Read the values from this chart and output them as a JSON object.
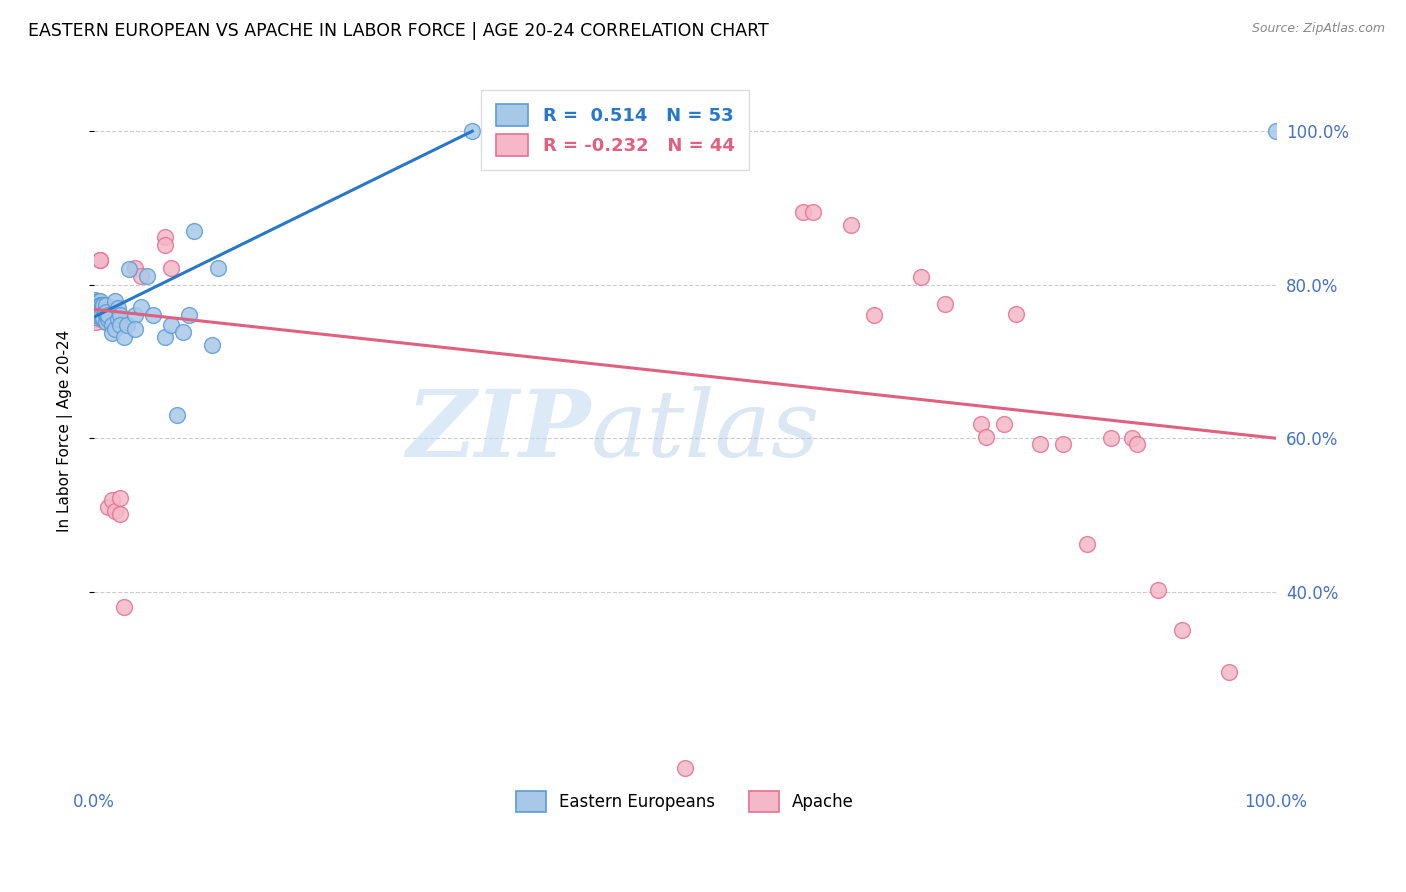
{
  "title": "EASTERN EUROPEAN VS APACHE IN LABOR FORCE | AGE 20-24 CORRELATION CHART",
  "source": "Source: ZipAtlas.com",
  "ylabel": "In Labor Force | Age 20-24",
  "watermark_zip": "ZIP",
  "watermark_atlas": "atlas",
  "blue_color": "#a8c8e8",
  "blue_edge_color": "#5b9bd5",
  "pink_color": "#f4b8c8",
  "pink_edge_color": "#e87090",
  "blue_line_color": "#2878c8",
  "pink_line_color": "#e06080",
  "axis_label_color": "#4472c4",
  "blue_scatter": [
    [
      0.001,
      0.775
    ],
    [
      0.001,
      0.762
    ],
    [
      0.001,
      0.77
    ],
    [
      0.001,
      0.758
    ],
    [
      0.001,
      0.78
    ],
    [
      0.001,
      0.767
    ],
    [
      0.002,
      0.774
    ],
    [
      0.002,
      0.761
    ],
    [
      0.002,
      0.771
    ],
    [
      0.003,
      0.779
    ],
    [
      0.003,
      0.764
    ],
    [
      0.004,
      0.761
    ],
    [
      0.005,
      0.779
    ],
    [
      0.005,
      0.774
    ],
    [
      0.006,
      0.774
    ],
    [
      0.006,
      0.761
    ],
    [
      0.007,
      0.771
    ],
    [
      0.008,
      0.757
    ],
    [
      0.008,
      0.774
    ],
    [
      0.01,
      0.752
    ],
    [
      0.01,
      0.761
    ],
    [
      0.01,
      0.774
    ],
    [
      0.01,
      0.765
    ],
    [
      0.012,
      0.756
    ],
    [
      0.012,
      0.761
    ],
    [
      0.015,
      0.748
    ],
    [
      0.015,
      0.737
    ],
    [
      0.018,
      0.779
    ],
    [
      0.018,
      0.742
    ],
    [
      0.02,
      0.77
    ],
    [
      0.02,
      0.756
    ],
    [
      0.022,
      0.76
    ],
    [
      0.022,
      0.747
    ],
    [
      0.025,
      0.732
    ],
    [
      0.028,
      0.747
    ],
    [
      0.03,
      0.82
    ],
    [
      0.035,
      0.761
    ],
    [
      0.035,
      0.742
    ],
    [
      0.04,
      0.771
    ],
    [
      0.045,
      0.812
    ],
    [
      0.05,
      0.761
    ],
    [
      0.06,
      0.732
    ],
    [
      0.065,
      0.747
    ],
    [
      0.07,
      0.63
    ],
    [
      0.075,
      0.738
    ],
    [
      0.08,
      0.761
    ],
    [
      0.085,
      0.87
    ],
    [
      0.1,
      0.722
    ],
    [
      0.105,
      0.822
    ],
    [
      0.32,
      1.0
    ],
    [
      1.0,
      1.0
    ]
  ],
  "pink_scatter": [
    [
      0.001,
      0.762
    ],
    [
      0.001,
      0.756
    ],
    [
      0.001,
      0.771
    ],
    [
      0.002,
      0.771
    ],
    [
      0.002,
      0.752
    ],
    [
      0.003,
      0.762
    ],
    [
      0.005,
      0.832
    ],
    [
      0.005,
      0.832
    ],
    [
      0.006,
      0.756
    ],
    [
      0.008,
      0.756
    ],
    [
      0.008,
      0.762
    ],
    [
      0.01,
      0.761
    ],
    [
      0.01,
      0.752
    ],
    [
      0.012,
      0.51
    ],
    [
      0.015,
      0.52
    ],
    [
      0.018,
      0.505
    ],
    [
      0.02,
      0.756
    ],
    [
      0.02,
      0.762
    ],
    [
      0.022,
      0.522
    ],
    [
      0.022,
      0.502
    ],
    [
      0.025,
      0.38
    ],
    [
      0.035,
      0.822
    ],
    [
      0.04,
      0.812
    ],
    [
      0.06,
      0.862
    ],
    [
      0.06,
      0.852
    ],
    [
      0.065,
      0.822
    ],
    [
      0.6,
      0.895
    ],
    [
      0.608,
      0.895
    ],
    [
      0.64,
      0.878
    ],
    [
      0.66,
      0.76
    ],
    [
      0.7,
      0.81
    ],
    [
      0.72,
      0.775
    ],
    [
      0.75,
      0.618
    ],
    [
      0.755,
      0.602
    ],
    [
      0.77,
      0.618
    ],
    [
      0.78,
      0.762
    ],
    [
      0.8,
      0.592
    ],
    [
      0.82,
      0.592
    ],
    [
      0.84,
      0.462
    ],
    [
      0.86,
      0.6
    ],
    [
      0.878,
      0.6
    ],
    [
      0.882,
      0.592
    ],
    [
      0.9,
      0.402
    ],
    [
      0.92,
      0.35
    ],
    [
      0.96,
      0.295
    ],
    [
      0.5,
      0.17
    ]
  ],
  "xlim": [
    0.0,
    1.0
  ],
  "ylim": [
    0.15,
    1.07
  ],
  "y_ticks": [
    0.4,
    0.6,
    0.8,
    1.0
  ],
  "y_tick_labels": [
    "40.0%",
    "60.0%",
    "80.0%",
    "100.0%"
  ],
  "x_ticks": [
    0.0,
    0.1,
    0.2,
    0.3,
    0.4,
    0.5,
    0.6,
    0.7,
    0.8,
    0.9,
    1.0
  ],
  "blue_trend_x": [
    0.0,
    0.32
  ],
  "blue_trend_y": [
    0.758,
    1.0
  ],
  "pink_trend_x": [
    0.0,
    1.0
  ],
  "pink_trend_y": [
    0.768,
    0.6
  ]
}
